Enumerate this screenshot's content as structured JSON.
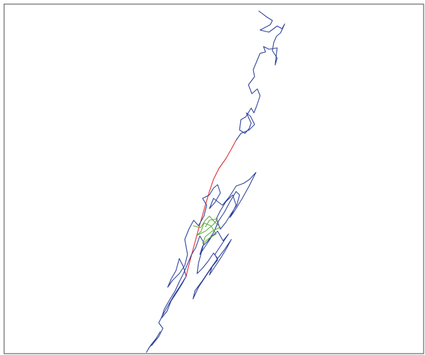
{
  "chart_data": {
    "type": "line",
    "title": "",
    "xlabel": "",
    "ylabel": "",
    "grid": false,
    "legend": "none",
    "series": [
      {
        "color": "#2b3f99",
        "points": [
          [
            378,
            16
          ],
          [
            390,
            25
          ],
          [
            398,
            30
          ],
          [
            395,
            36
          ],
          [
            380,
            44
          ],
          [
            393,
            47
          ],
          [
            405,
            38
          ],
          [
            412,
            42
          ],
          [
            416,
            35
          ],
          [
            410,
            48
          ],
          [
            404,
            53
          ],
          [
            400,
            62
          ],
          [
            398,
            74
          ],
          [
            405,
            85
          ],
          [
            402,
            95
          ],
          [
            405,
            70
          ],
          [
            393,
            72
          ],
          [
            385,
            68
          ],
          [
            388,
            76
          ],
          [
            380,
            78
          ],
          [
            375,
            90
          ],
          [
            370,
            102
          ],
          [
            372,
            112
          ],
          [
            363,
            124
          ],
          [
            368,
            137
          ],
          [
            376,
            130
          ],
          [
            380,
            140
          ],
          [
            375,
            155
          ],
          [
            371,
            165
          ],
          [
            367,
            158
          ],
          [
            359,
            171
          ],
          [
            352,
            175
          ],
          [
            350,
            190
          ],
          [
            358,
            195
          ],
          [
            364,
            188
          ],
          [
            367,
            180
          ],
          [
            360,
            165
          ],
          [
            366,
            170
          ],
          [
            372,
            182
          ],
          [
            364,
            190
          ],
          [
            352,
            195
          ],
          [
            345,
            205
          ]
        ]
      },
      {
        "color": "#e0262a",
        "points": [
          [
            345,
            205
          ],
          [
            338,
            218
          ],
          [
            330,
            232
          ],
          [
            320,
            246
          ],
          [
            312,
            262
          ],
          [
            306,
            280
          ],
          [
            300,
            300
          ],
          [
            295,
            318
          ],
          [
            290,
            335
          ],
          [
            286,
            350
          ],
          [
            282,
            365
          ],
          [
            278,
            380
          ],
          [
            274,
            395
          ],
          [
            272,
            404
          ]
        ]
      },
      {
        "color": "#2b3f99",
        "points": [
          [
            272,
            404
          ],
          [
            268,
            390
          ],
          [
            262,
            378
          ],
          [
            257,
            396
          ],
          [
            250,
            408
          ],
          [
            245,
            420
          ],
          [
            252,
            410
          ],
          [
            262,
            400
          ],
          [
            270,
            388
          ],
          [
            274,
            372
          ],
          [
            270,
            350
          ],
          [
            276,
            335
          ],
          [
            283,
            322
          ],
          [
            290,
            330
          ],
          [
            298,
            316
          ],
          [
            302,
            300
          ],
          [
            296,
            290
          ],
          [
            306,
            285
          ],
          [
            312,
            275
          ],
          [
            318,
            270
          ],
          [
            322,
            282
          ],
          [
            314,
            296
          ],
          [
            306,
            305
          ],
          [
            312,
            290
          ],
          [
            325,
            300
          ],
          [
            335,
            288
          ],
          [
            345,
            272
          ],
          [
            356,
            268
          ],
          [
            365,
            262
          ],
          [
            374,
            252
          ],
          [
            364,
            272
          ],
          [
            354,
            290
          ],
          [
            343,
            308
          ],
          [
            336,
            318
          ],
          [
            345,
            300
          ],
          [
            340,
            285
          ],
          [
            330,
            295
          ],
          [
            322,
            308
          ],
          [
            316,
            320
          ],
          [
            322,
            335
          ],
          [
            330,
            325
          ],
          [
            338,
            312
          ],
          [
            346,
            300
          ],
          [
            350,
            285
          ],
          [
            345,
            280
          ],
          [
            336,
            295
          ],
          [
            328,
            310
          ],
          [
            320,
            322
          ],
          [
            312,
            340
          ],
          [
            304,
            352
          ],
          [
            296,
            360
          ],
          [
            292,
            372
          ],
          [
            300,
            360
          ],
          [
            310,
            345
          ],
          [
            318,
            338
          ],
          [
            326,
            352
          ],
          [
            334,
            342
          ],
          [
            322,
            360
          ],
          [
            314,
            372
          ],
          [
            318,
            380
          ],
          [
            310,
            390
          ],
          [
            306,
            402
          ],
          [
            314,
            390
          ],
          [
            322,
            378
          ],
          [
            330,
            365
          ],
          [
            338,
            350
          ],
          [
            328,
            365
          ],
          [
            318,
            378
          ],
          [
            306,
            395
          ],
          [
            296,
            410
          ],
          [
            285,
            425
          ],
          [
            282,
            437
          ],
          [
            290,
            420
          ],
          [
            300,
            405
          ],
          [
            310,
            390
          ],
          [
            318,
            378
          ],
          [
            312,
            370
          ],
          [
            304,
            382
          ],
          [
            296,
            392
          ],
          [
            288,
            400
          ],
          [
            290,
            385
          ],
          [
            294,
            370
          ],
          [
            298,
            355
          ],
          [
            292,
            345
          ],
          [
            286,
            362
          ],
          [
            280,
            372
          ],
          [
            274,
            386
          ],
          [
            268,
            400
          ],
          [
            262,
            412
          ],
          [
            256,
            425
          ],
          [
            248,
            438
          ],
          [
            240,
            452
          ],
          [
            236,
            465
          ],
          [
            244,
            455
          ],
          [
            250,
            440
          ],
          [
            258,
            428
          ],
          [
            266,
            415
          ],
          [
            272,
            404
          ],
          [
            262,
            420
          ],
          [
            254,
            432
          ],
          [
            246,
            446
          ],
          [
            238,
            460
          ],
          [
            232,
            472
          ],
          [
            238,
            480
          ],
          [
            232,
            492
          ],
          [
            224,
            502
          ],
          [
            218,
            508
          ],
          [
            214,
            515
          ],
          [
            220,
            505
          ],
          [
            228,
            495
          ],
          [
            234,
            485
          ],
          [
            228,
            495
          ],
          [
            222,
            505
          ]
        ]
      },
      {
        "color": "#5aab3a",
        "points": [
          [
            282,
            330
          ],
          [
            293,
            333
          ],
          [
            300,
            322
          ],
          [
            306,
            316
          ],
          [
            314,
            325
          ],
          [
            322,
            332
          ],
          [
            310,
            338
          ],
          [
            300,
            346
          ],
          [
            296,
            356
          ],
          [
            306,
            348
          ],
          [
            316,
            342
          ],
          [
            308,
            330
          ],
          [
            298,
            326
          ],
          [
            294,
            338
          ],
          [
            288,
            344
          ],
          [
            300,
            338
          ],
          [
            312,
            328
          ],
          [
            318,
            320
          ],
          [
            306,
            322
          ],
          [
            300,
            332
          ]
        ]
      }
    ]
  }
}
